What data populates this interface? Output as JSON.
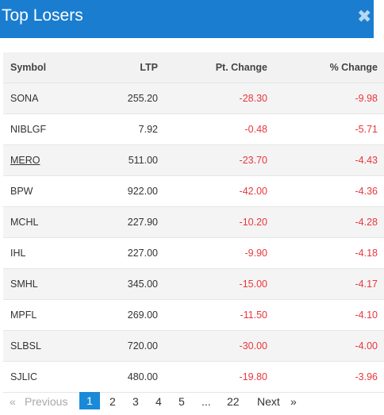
{
  "header": {
    "title": "Top Losers",
    "close_icon": "✖"
  },
  "table": {
    "columns": [
      "Symbol",
      "LTP",
      "Pt. Change",
      "% Change"
    ],
    "rows": [
      {
        "symbol": "SONA",
        "ltp": "255.20",
        "pt_change": "-28.30",
        "pct_change": "-9.98"
      },
      {
        "symbol": "NIBLGF",
        "ltp": "7.92",
        "pt_change": "-0.48",
        "pct_change": "-5.71"
      },
      {
        "symbol": "MERO",
        "ltp": "511.00",
        "pt_change": "-23.70",
        "pct_change": "-4.43"
      },
      {
        "symbol": "BPW",
        "ltp": "922.00",
        "pt_change": "-42.00",
        "pct_change": "-4.36"
      },
      {
        "symbol": "MCHL",
        "ltp": "227.90",
        "pt_change": "-10.20",
        "pct_change": "-4.28"
      },
      {
        "symbol": "IHL",
        "ltp": "227.00",
        "pt_change": "-9.90",
        "pct_change": "-4.18"
      },
      {
        "symbol": "SMHL",
        "ltp": "345.00",
        "pt_change": "-15.00",
        "pct_change": "-4.17"
      },
      {
        "symbol": "MPFL",
        "ltp": "269.00",
        "pt_change": "-11.50",
        "pct_change": "-4.10"
      },
      {
        "symbol": "SLBSL",
        "ltp": "720.00",
        "pt_change": "-30.00",
        "pct_change": "-4.00"
      },
      {
        "symbol": "SJLIC",
        "ltp": "480.00",
        "pt_change": "-19.80",
        "pct_change": "-3.96"
      }
    ]
  },
  "pagination": {
    "prev_arrow": "«",
    "prev_label": "Previous",
    "pages": [
      "1",
      "2",
      "3",
      "4",
      "5"
    ],
    "ellipsis": "...",
    "last_page": "22",
    "next_label": "Next",
    "next_arrow": "»",
    "current_page": "1"
  },
  "colors": {
    "header_bg": "#1a7dd0",
    "negative": "#e8373d",
    "active_page": "#1a8ad8"
  }
}
